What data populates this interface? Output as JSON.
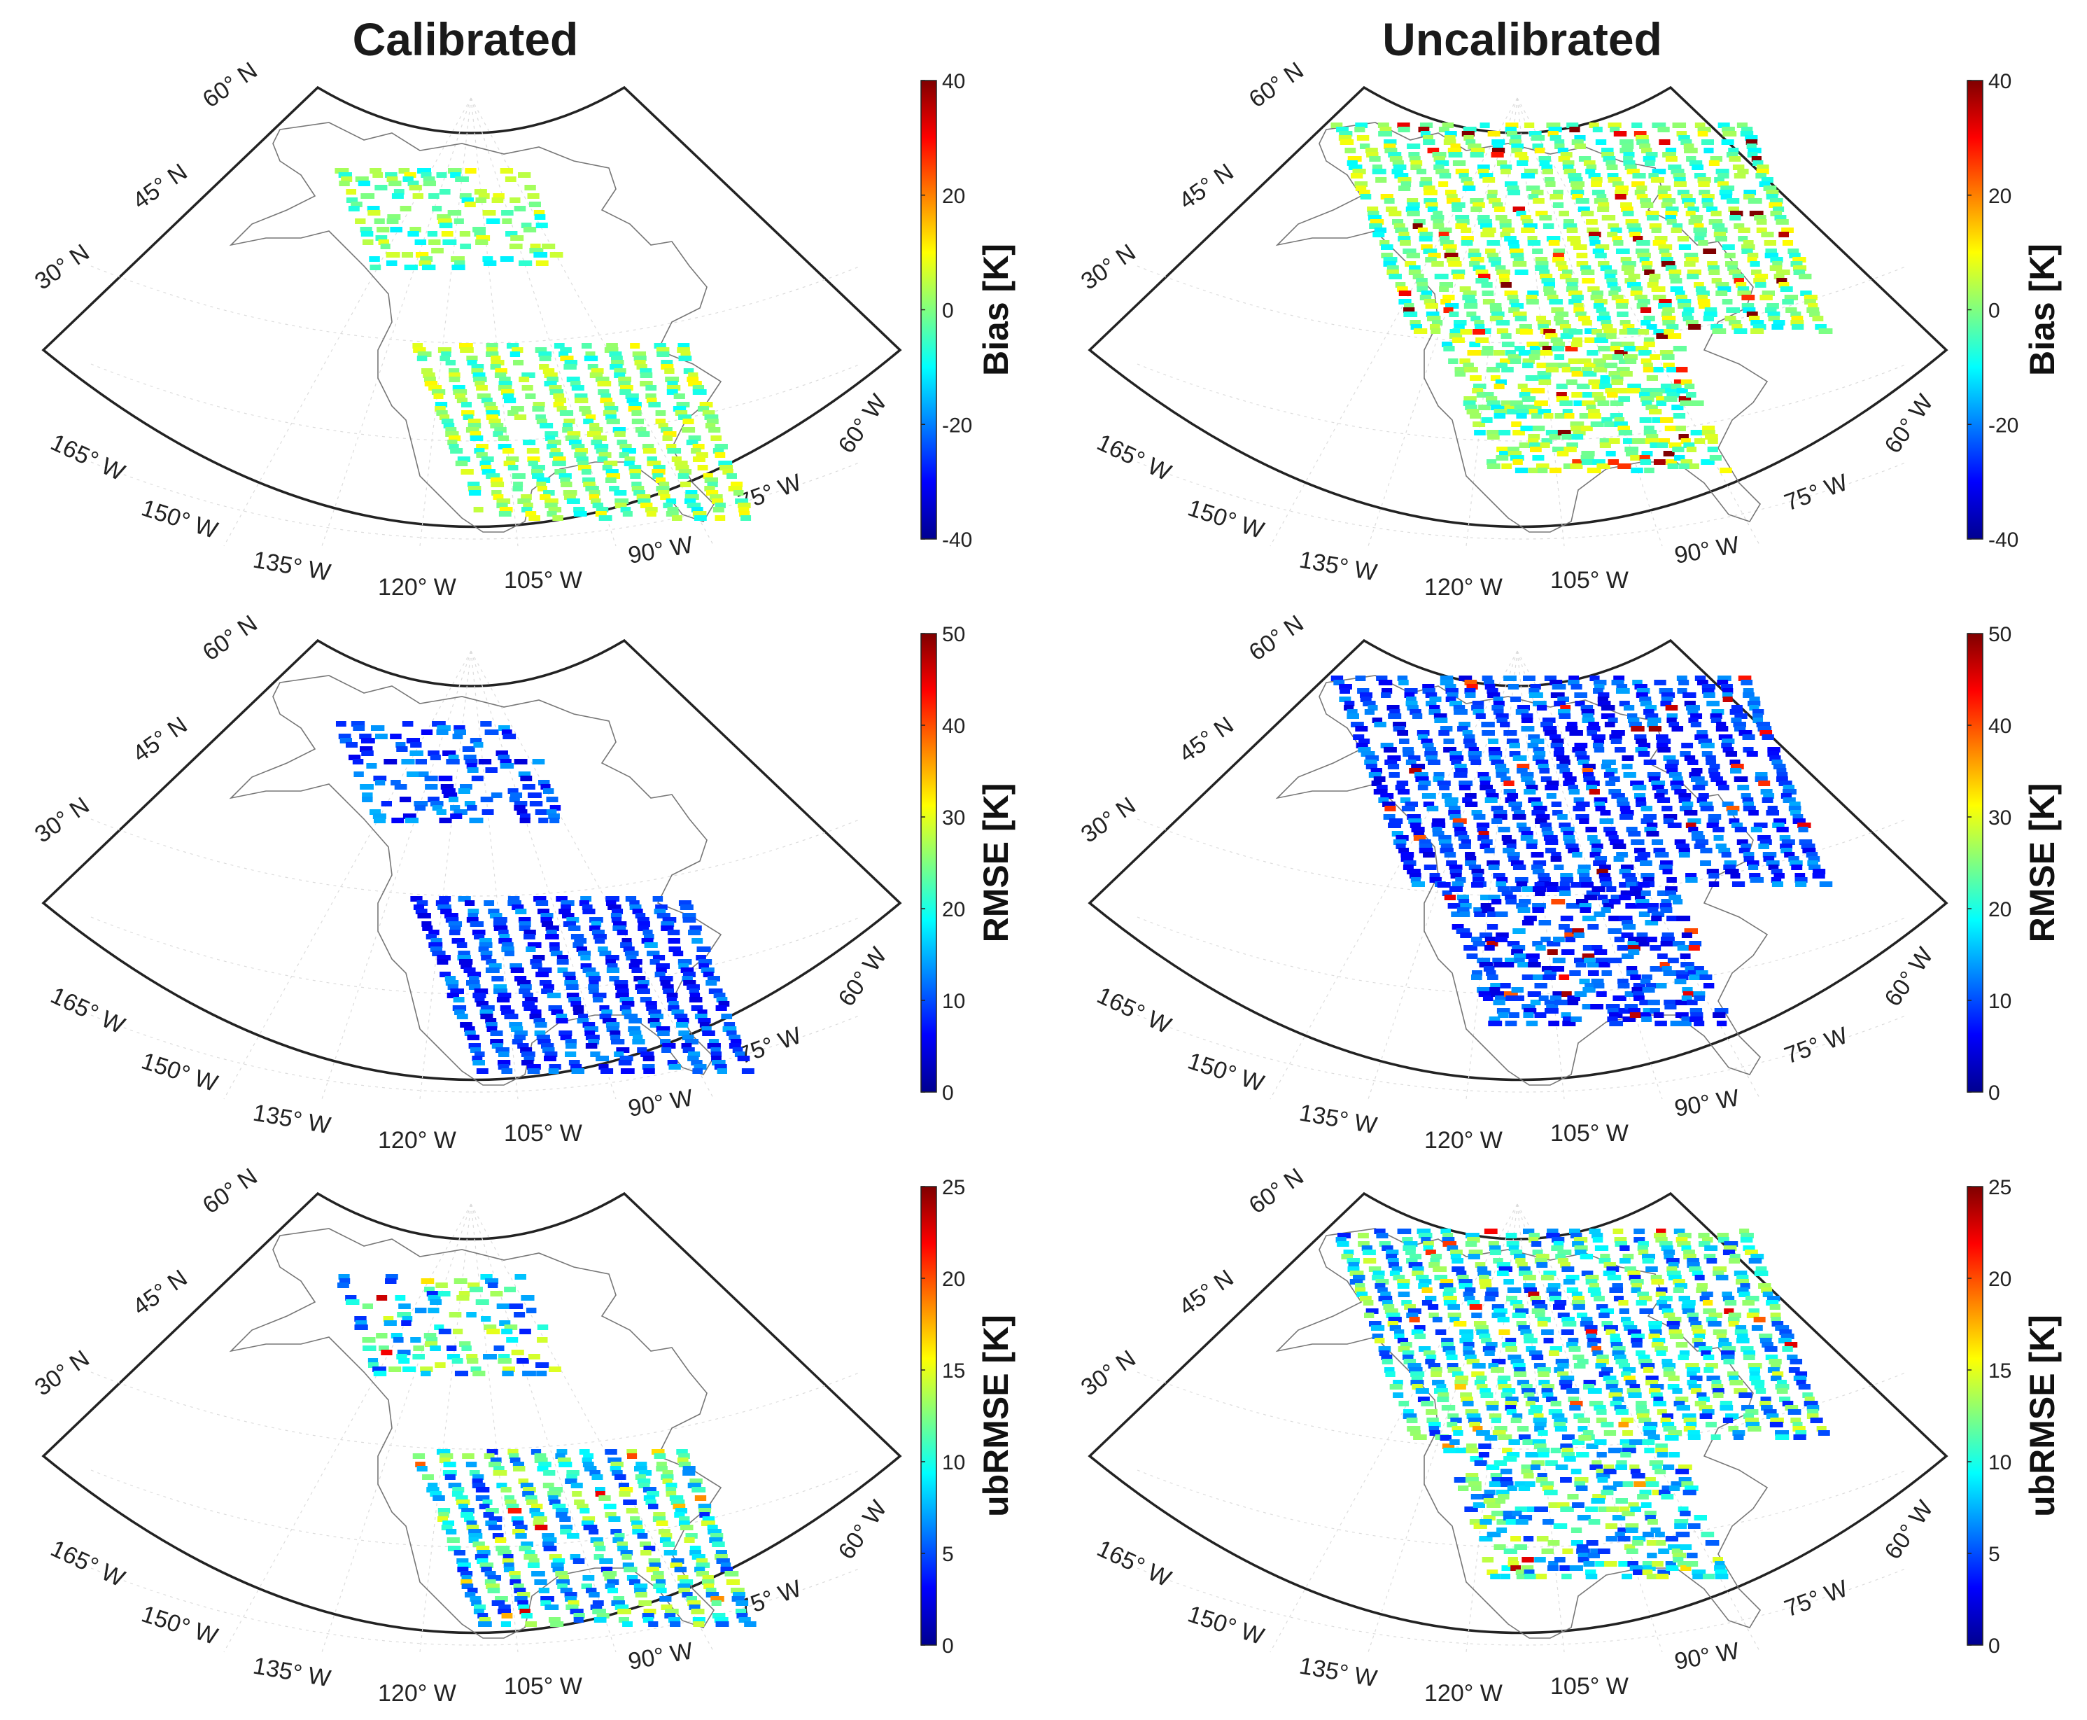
{
  "titles": {
    "calibrated": "Calibrated",
    "uncalibrated": "Uncalibrated"
  },
  "map_axes": {
    "lat_labels": [
      "60° N",
      "45° N",
      "30° N"
    ],
    "lon_labels": [
      "165° W",
      "150° W",
      "135° W",
      "120° W",
      "105° W",
      "90° W",
      "75° W",
      "60° W"
    ]
  },
  "rows": [
    {
      "metric": "Bias",
      "colorbar_label": "Bias [K]",
      "range": [
        -40,
        40
      ],
      "ticks": [
        "40",
        "20",
        "0",
        "-20",
        "-40"
      ]
    },
    {
      "metric": "RMSE",
      "colorbar_label": "RMSE [K]",
      "range": [
        0,
        50
      ],
      "ticks": [
        "50",
        "40",
        "30",
        "20",
        "10",
        "0"
      ]
    },
    {
      "metric": "ubRMSE",
      "colorbar_label": "ubRMSE [K]",
      "range": [
        0,
        25
      ],
      "ticks": [
        "25",
        "20",
        "15",
        "10",
        "5",
        "0"
      ]
    }
  ],
  "colormap": [
    "#00008f",
    "#0000ff",
    "#0080ff",
    "#00ffff",
    "#80ff80",
    "#ffff00",
    "#ff8000",
    "#ff0000",
    "#800000"
  ]
}
